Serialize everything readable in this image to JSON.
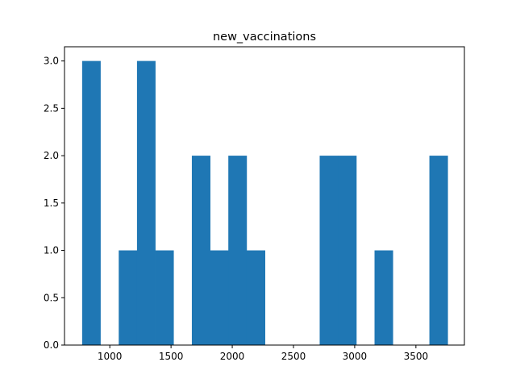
{
  "chart_data": {
    "type": "bar",
    "subtype": "histogram",
    "title": "new_vaccinations",
    "xlabel": "",
    "ylabel": "",
    "xlim": [
      630,
      3896
    ],
    "ylim": [
      0,
      3.15
    ],
    "bin_edges": [
      774,
      923,
      1073,
      1222,
      1371,
      1520,
      1670,
      1819,
      1968,
      2117,
      2267,
      2416,
      2565,
      2714,
      2864,
      3013,
      3162,
      3311,
      3460,
      3610,
      3759
    ],
    "counts": [
      3,
      0,
      1,
      3,
      1,
      0,
      2,
      1,
      2,
      1,
      0,
      0,
      0,
      2,
      2,
      0,
      1,
      0,
      0,
      2
    ],
    "x_ticks": [
      1000,
      1500,
      2000,
      2500,
      3000,
      3500
    ],
    "x_tick_labels": [
      "1000",
      "1500",
      "2000",
      "2500",
      "3000",
      "3500"
    ],
    "y_ticks": [
      0.0,
      0.5,
      1.0,
      1.5,
      2.0,
      2.5,
      3.0
    ],
    "y_tick_labels": [
      "0.0",
      "0.5",
      "1.0",
      "1.5",
      "2.0",
      "2.5",
      "3.0"
    ],
    "bar_color": "#1f77b4",
    "grid": false,
    "legend": "none"
  }
}
